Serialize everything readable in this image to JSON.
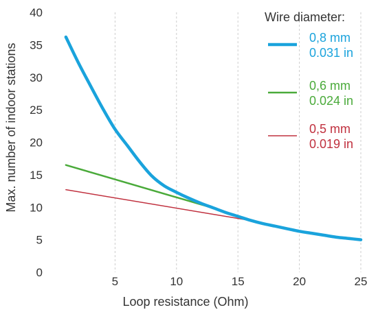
{
  "chart_data": {
    "type": "line",
    "xlabel": "Loop resistance (Ohm)",
    "ylabel": "Max. number of indoor stations",
    "xlim": [
      0,
      25
    ],
    "ylim": [
      0,
      40
    ],
    "x_ticks": [
      "5",
      "10",
      "15",
      "20",
      "25"
    ],
    "y_ticks": [
      "0",
      "5",
      "10",
      "15",
      "20",
      "25",
      "30",
      "35",
      "40"
    ],
    "grid": "vertical dashed",
    "legend": {
      "title": "Wire diameter:",
      "placement": "right"
    },
    "series": [
      {
        "label_lines": [
          "0,8 mm",
          "0.031 in"
        ],
        "color": "#1aa3dc",
        "line_weight": "thick",
        "x": [
          1,
          2,
          3,
          4,
          5,
          6,
          7,
          8,
          9,
          10,
          11,
          12,
          13,
          14,
          15,
          16,
          17,
          18,
          19,
          20,
          21,
          22,
          23,
          24,
          25
        ],
        "y": [
          36.2,
          32.3,
          28.7,
          25.2,
          22.0,
          19.5,
          17.0,
          14.8,
          13.3,
          12.3,
          11.4,
          10.6,
          9.9,
          9.2,
          8.6,
          8.0,
          7.5,
          7.1,
          6.7,
          6.3,
          6.0,
          5.7,
          5.4,
          5.2,
          5.0
        ]
      },
      {
        "label_lines": [
          "0,6 mm",
          "0.024 in"
        ],
        "color": "#4aaa3a",
        "line_weight": "medium",
        "x": [
          1,
          13.3
        ],
        "y": [
          16.5,
          9.7
        ]
      },
      {
        "label_lines": [
          "0,5 mm",
          "0.019 in"
        ],
        "color": "#c0303e",
        "line_weight": "thin",
        "x": [
          1,
          16.2
        ],
        "y": [
          12.7,
          7.9
        ]
      }
    ]
  }
}
